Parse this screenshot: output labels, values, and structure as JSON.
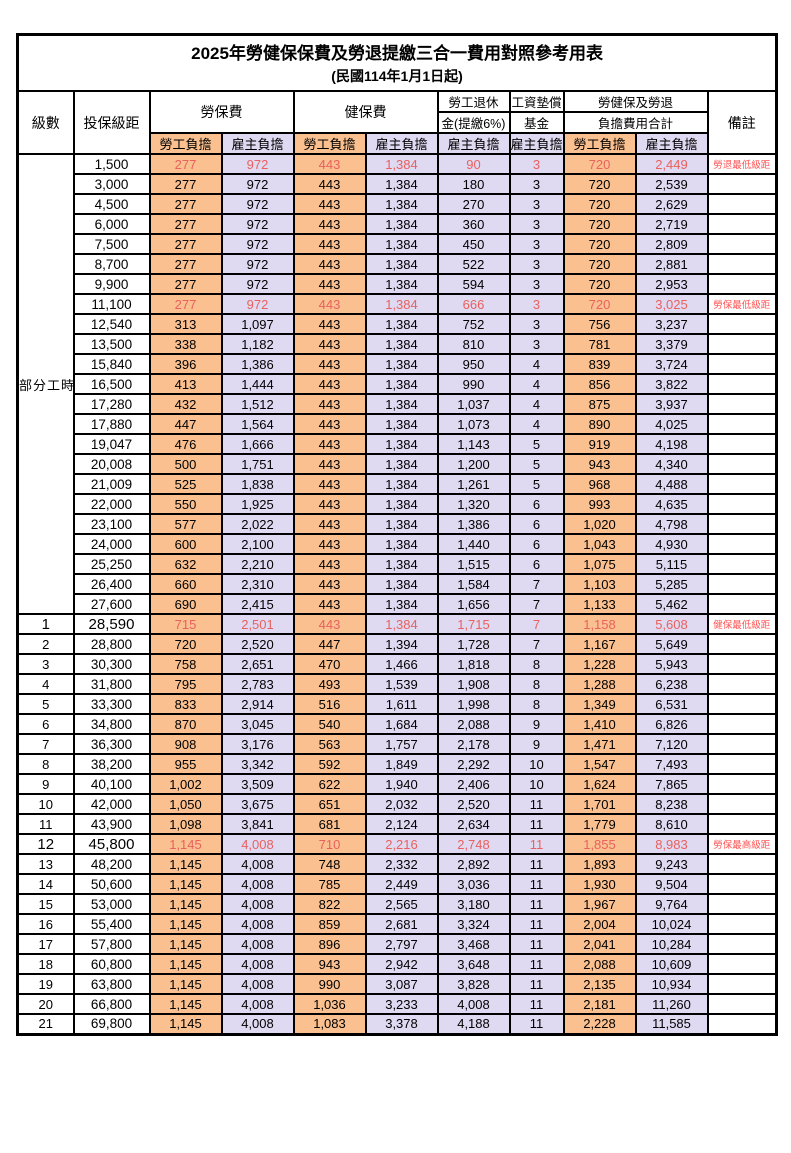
{
  "title": "2025年勞健保保費及勞退提繳三合一費用對照參考用表",
  "subtitle": "(民國114年1月1日起)",
  "columns": {
    "level": "級數",
    "bracket": "投保級距",
    "labor_insurance": "勞保費",
    "health_insurance": "健保費",
    "pension_line1": "勞工退休",
    "pension_line2": "金(提繳6%)",
    "wage_fund_line1": "工資墊償",
    "wage_fund_line2": "基金",
    "total_line1": "勞健保及勞退",
    "total_line2": "負擔費用合計",
    "remark": "備註",
    "employee_share": "勞工負擔",
    "employer_share": "雇主負擔"
  },
  "part_time_label": "部分工時",
  "column_fill_pattern": [
    "employee",
    "employer",
    "employee",
    "employer",
    "employer",
    "employer",
    "employee",
    "employer"
  ],
  "colors": {
    "employee_fill": "#FAC090",
    "employer_fill": "#DFDAF2",
    "highlight_value_red": "#E8615E",
    "remark_red": "#FF5252",
    "border": "#000000"
  },
  "rows": [
    {
      "level": "",
      "bracket": "1,500",
      "values": [
        "277",
        "972",
        "443",
        "1,384",
        "90",
        "3",
        "720",
        "2,449"
      ],
      "remark": "勞退最低級距",
      "highlight": true,
      "emphasis": false
    },
    {
      "level": "",
      "bracket": "3,000",
      "values": [
        "277",
        "972",
        "443",
        "1,384",
        "180",
        "3",
        "720",
        "2,539"
      ],
      "remark": "",
      "highlight": false,
      "emphasis": false
    },
    {
      "level": "",
      "bracket": "4,500",
      "values": [
        "277",
        "972",
        "443",
        "1,384",
        "270",
        "3",
        "720",
        "2,629"
      ],
      "remark": "",
      "highlight": false,
      "emphasis": false
    },
    {
      "level": "",
      "bracket": "6,000",
      "values": [
        "277",
        "972",
        "443",
        "1,384",
        "360",
        "3",
        "720",
        "2,719"
      ],
      "remark": "",
      "highlight": false,
      "emphasis": false
    },
    {
      "level": "",
      "bracket": "7,500",
      "values": [
        "277",
        "972",
        "443",
        "1,384",
        "450",
        "3",
        "720",
        "2,809"
      ],
      "remark": "",
      "highlight": false,
      "emphasis": false
    },
    {
      "level": "",
      "bracket": "8,700",
      "values": [
        "277",
        "972",
        "443",
        "1,384",
        "522",
        "3",
        "720",
        "2,881"
      ],
      "remark": "",
      "highlight": false,
      "emphasis": false
    },
    {
      "level": "",
      "bracket": "9,900",
      "values": [
        "277",
        "972",
        "443",
        "1,384",
        "594",
        "3",
        "720",
        "2,953"
      ],
      "remark": "",
      "highlight": false,
      "emphasis": false
    },
    {
      "level": "",
      "bracket": "11,100",
      "values": [
        "277",
        "972",
        "443",
        "1,384",
        "666",
        "3",
        "720",
        "3,025"
      ],
      "remark": "勞保最低級距",
      "highlight": true,
      "emphasis": false
    },
    {
      "level": "",
      "bracket": "12,540",
      "values": [
        "313",
        "1,097",
        "443",
        "1,384",
        "752",
        "3",
        "756",
        "3,237"
      ],
      "remark": "",
      "highlight": false,
      "emphasis": false
    },
    {
      "level": "",
      "bracket": "13,500",
      "values": [
        "338",
        "1,182",
        "443",
        "1,384",
        "810",
        "3",
        "781",
        "3,379"
      ],
      "remark": "",
      "highlight": false,
      "emphasis": false
    },
    {
      "level": "",
      "bracket": "15,840",
      "values": [
        "396",
        "1,386",
        "443",
        "1,384",
        "950",
        "4",
        "839",
        "3,724"
      ],
      "remark": "",
      "highlight": false,
      "emphasis": false
    },
    {
      "level": "",
      "bracket": "16,500",
      "values": [
        "413",
        "1,444",
        "443",
        "1,384",
        "990",
        "4",
        "856",
        "3,822"
      ],
      "remark": "",
      "highlight": false,
      "emphasis": false
    },
    {
      "level": "",
      "bracket": "17,280",
      "values": [
        "432",
        "1,512",
        "443",
        "1,384",
        "1,037",
        "4",
        "875",
        "3,937"
      ],
      "remark": "",
      "highlight": false,
      "emphasis": false
    },
    {
      "level": "",
      "bracket": "17,880",
      "values": [
        "447",
        "1,564",
        "443",
        "1,384",
        "1,073",
        "4",
        "890",
        "4,025"
      ],
      "remark": "",
      "highlight": false,
      "emphasis": false
    },
    {
      "level": "",
      "bracket": "19,047",
      "values": [
        "476",
        "1,666",
        "443",
        "1,384",
        "1,143",
        "5",
        "919",
        "4,198"
      ],
      "remark": "",
      "highlight": false,
      "emphasis": false
    },
    {
      "level": "",
      "bracket": "20,008",
      "values": [
        "500",
        "1,751",
        "443",
        "1,384",
        "1,200",
        "5",
        "943",
        "4,340"
      ],
      "remark": "",
      "highlight": false,
      "emphasis": false
    },
    {
      "level": "",
      "bracket": "21,009",
      "values": [
        "525",
        "1,838",
        "443",
        "1,384",
        "1,261",
        "5",
        "968",
        "4,488"
      ],
      "remark": "",
      "highlight": false,
      "emphasis": false
    },
    {
      "level": "",
      "bracket": "22,000",
      "values": [
        "550",
        "1,925",
        "443",
        "1,384",
        "1,320",
        "6",
        "993",
        "4,635"
      ],
      "remark": "",
      "highlight": false,
      "emphasis": false
    },
    {
      "level": "",
      "bracket": "23,100",
      "values": [
        "577",
        "2,022",
        "443",
        "1,384",
        "1,386",
        "6",
        "1,020",
        "4,798"
      ],
      "remark": "",
      "highlight": false,
      "emphasis": false
    },
    {
      "level": "",
      "bracket": "24,000",
      "values": [
        "600",
        "2,100",
        "443",
        "1,384",
        "1,440",
        "6",
        "1,043",
        "4,930"
      ],
      "remark": "",
      "highlight": false,
      "emphasis": false
    },
    {
      "level": "",
      "bracket": "25,250",
      "values": [
        "632",
        "2,210",
        "443",
        "1,384",
        "1,515",
        "6",
        "1,075",
        "5,115"
      ],
      "remark": "",
      "highlight": false,
      "emphasis": false
    },
    {
      "level": "",
      "bracket": "26,400",
      "values": [
        "660",
        "2,310",
        "443",
        "1,384",
        "1,584",
        "7",
        "1,103",
        "5,285"
      ],
      "remark": "",
      "highlight": false,
      "emphasis": false
    },
    {
      "level": "",
      "bracket": "27,600",
      "values": [
        "690",
        "2,415",
        "443",
        "1,384",
        "1,656",
        "7",
        "1,133",
        "5,462"
      ],
      "remark": "",
      "highlight": false,
      "emphasis": false
    },
    {
      "level": "1",
      "bracket": "28,590",
      "values": [
        "715",
        "2,501",
        "443",
        "1,384",
        "1,715",
        "7",
        "1,158",
        "5,608"
      ],
      "remark": "健保最低級距",
      "highlight": true,
      "emphasis": true
    },
    {
      "level": "2",
      "bracket": "28,800",
      "values": [
        "720",
        "2,520",
        "447",
        "1,394",
        "1,728",
        "7",
        "1,167",
        "5,649"
      ],
      "remark": "",
      "highlight": false,
      "emphasis": false
    },
    {
      "level": "3",
      "bracket": "30,300",
      "values": [
        "758",
        "2,651",
        "470",
        "1,466",
        "1,818",
        "8",
        "1,228",
        "5,943"
      ],
      "remark": "",
      "highlight": false,
      "emphasis": false
    },
    {
      "level": "4",
      "bracket": "31,800",
      "values": [
        "795",
        "2,783",
        "493",
        "1,539",
        "1,908",
        "8",
        "1,288",
        "6,238"
      ],
      "remark": "",
      "highlight": false,
      "emphasis": false
    },
    {
      "level": "5",
      "bracket": "33,300",
      "values": [
        "833",
        "2,914",
        "516",
        "1,611",
        "1,998",
        "8",
        "1,349",
        "6,531"
      ],
      "remark": "",
      "highlight": false,
      "emphasis": false
    },
    {
      "level": "6",
      "bracket": "34,800",
      "values": [
        "870",
        "3,045",
        "540",
        "1,684",
        "2,088",
        "9",
        "1,410",
        "6,826"
      ],
      "remark": "",
      "highlight": false,
      "emphasis": false
    },
    {
      "level": "7",
      "bracket": "36,300",
      "values": [
        "908",
        "3,176",
        "563",
        "1,757",
        "2,178",
        "9",
        "1,471",
        "7,120"
      ],
      "remark": "",
      "highlight": false,
      "emphasis": false
    },
    {
      "level": "8",
      "bracket": "38,200",
      "values": [
        "955",
        "3,342",
        "592",
        "1,849",
        "2,292",
        "10",
        "1,547",
        "7,493"
      ],
      "remark": "",
      "highlight": false,
      "emphasis": false
    },
    {
      "level": "9",
      "bracket": "40,100",
      "values": [
        "1,002",
        "3,509",
        "622",
        "1,940",
        "2,406",
        "10",
        "1,624",
        "7,865"
      ],
      "remark": "",
      "highlight": false,
      "emphasis": false
    },
    {
      "level": "10",
      "bracket": "42,000",
      "values": [
        "1,050",
        "3,675",
        "651",
        "2,032",
        "2,520",
        "11",
        "1,701",
        "8,238"
      ],
      "remark": "",
      "highlight": false,
      "emphasis": false
    },
    {
      "level": "11",
      "bracket": "43,900",
      "values": [
        "1,098",
        "3,841",
        "681",
        "2,124",
        "2,634",
        "11",
        "1,779",
        "8,610"
      ],
      "remark": "",
      "highlight": false,
      "emphasis": false
    },
    {
      "level": "12",
      "bracket": "45,800",
      "values": [
        "1,145",
        "4,008",
        "710",
        "2,216",
        "2,748",
        "11",
        "1,855",
        "8,983"
      ],
      "remark": "勞保最高級距",
      "highlight": true,
      "emphasis": true
    },
    {
      "level": "13",
      "bracket": "48,200",
      "values": [
        "1,145",
        "4,008",
        "748",
        "2,332",
        "2,892",
        "11",
        "1,893",
        "9,243"
      ],
      "remark": "",
      "highlight": false,
      "emphasis": false
    },
    {
      "level": "14",
      "bracket": "50,600",
      "values": [
        "1,145",
        "4,008",
        "785",
        "2,449",
        "3,036",
        "11",
        "1,930",
        "9,504"
      ],
      "remark": "",
      "highlight": false,
      "emphasis": false
    },
    {
      "level": "15",
      "bracket": "53,000",
      "values": [
        "1,145",
        "4,008",
        "822",
        "2,565",
        "3,180",
        "11",
        "1,967",
        "9,764"
      ],
      "remark": "",
      "highlight": false,
      "emphasis": false
    },
    {
      "level": "16",
      "bracket": "55,400",
      "values": [
        "1,145",
        "4,008",
        "859",
        "2,681",
        "3,324",
        "11",
        "2,004",
        "10,024"
      ],
      "remark": "",
      "highlight": false,
      "emphasis": false
    },
    {
      "level": "17",
      "bracket": "57,800",
      "values": [
        "1,145",
        "4,008",
        "896",
        "2,797",
        "3,468",
        "11",
        "2,041",
        "10,284"
      ],
      "remark": "",
      "highlight": false,
      "emphasis": false
    },
    {
      "level": "18",
      "bracket": "60,800",
      "values": [
        "1,145",
        "4,008",
        "943",
        "2,942",
        "3,648",
        "11",
        "2,088",
        "10,609"
      ],
      "remark": "",
      "highlight": false,
      "emphasis": false
    },
    {
      "level": "19",
      "bracket": "63,800",
      "values": [
        "1,145",
        "4,008",
        "990",
        "3,087",
        "3,828",
        "11",
        "2,135",
        "10,934"
      ],
      "remark": "",
      "highlight": false,
      "emphasis": false
    },
    {
      "level": "20",
      "bracket": "66,800",
      "values": [
        "1,145",
        "4,008",
        "1,036",
        "3,233",
        "4,008",
        "11",
        "2,181",
        "11,260"
      ],
      "remark": "",
      "highlight": false,
      "emphasis": false
    },
    {
      "level": "21",
      "bracket": "69,800",
      "values": [
        "1,145",
        "4,008",
        "1,083",
        "3,378",
        "4,188",
        "11",
        "2,228",
        "11,585"
      ],
      "remark": "",
      "highlight": false,
      "emphasis": false
    }
  ]
}
